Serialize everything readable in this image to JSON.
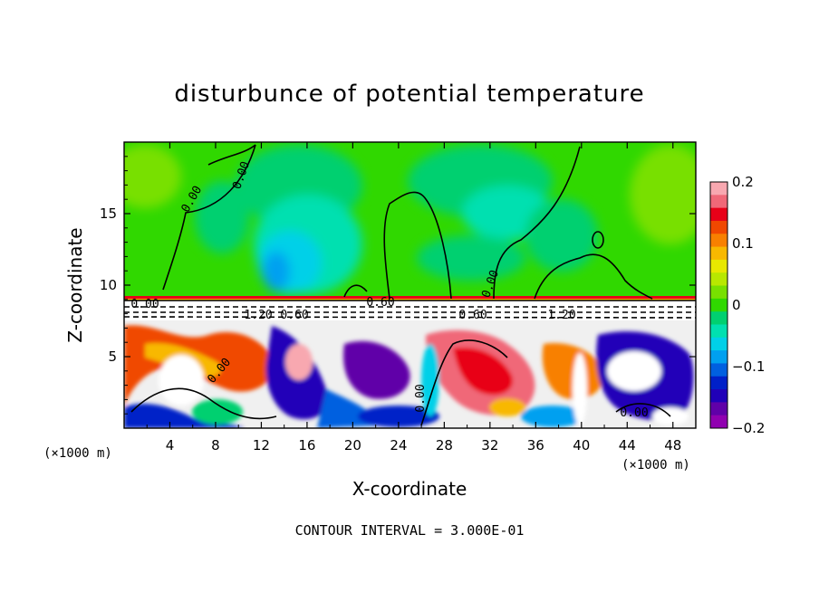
{
  "chart_data": {
    "type": "heatmap",
    "title": "disturbunce of potential temperature",
    "xlabel": "X-coordinate",
    "ylabel": "Z-coordinate",
    "x_unit": "(×1000 m)",
    "y_unit": "(×1000 m)",
    "xlim": [
      0,
      50
    ],
    "ylim": [
      0,
      20
    ],
    "x_ticks": [
      4,
      8,
      12,
      16,
      20,
      24,
      28,
      32,
      36,
      40,
      44,
      48
    ],
    "y_ticks": [
      5,
      10,
      15
    ],
    "colorbar": {
      "min": -0.2,
      "max": 0.2,
      "tick_labels": [
        "0.2",
        "0.1",
        "0",
        "−0.1",
        "−0.2"
      ],
      "tick_values": [
        0.2,
        0.1,
        0,
        -0.1,
        -0.2
      ],
      "colors": [
        "#f8a8b0",
        "#f06878",
        "#e80018",
        "#f04800",
        "#f88000",
        "#f8b800",
        "#e8e800",
        "#b8e800",
        "#78e000",
        "#30d800",
        "#00d070",
        "#00e0b0",
        "#00d0e8",
        "#00a0f0",
        "#0060e0",
        "#0020c8",
        "#2000b8",
        "#6000a8",
        "#9000b0"
      ]
    },
    "contour_labels": [
      "0.00",
      "0.00",
      "0.00",
      "0.00",
      "0.00",
      "0.00",
      "0.60",
      "1.20",
      "0.60",
      "0.60",
      "1.20",
      "0.00"
    ],
    "annotation": "CONTOUR INTERVAL = 3.000E-01"
  }
}
